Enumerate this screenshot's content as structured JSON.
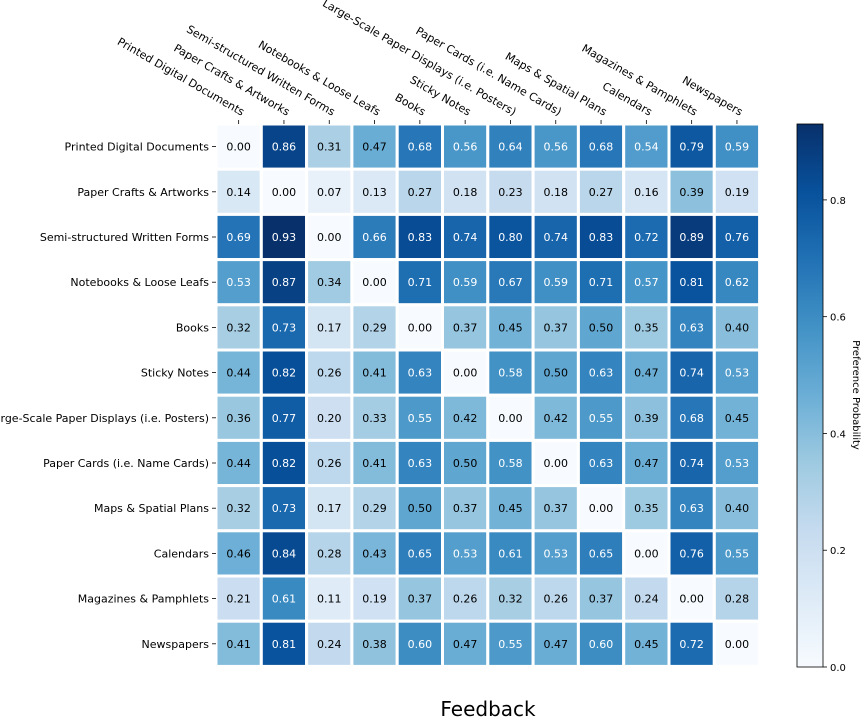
{
  "chart_data": {
    "type": "heatmap",
    "title": "",
    "xlabel": "Feedback",
    "ylabel": "",
    "x_categories": [
      "Printed Digital Documents",
      "Paper Crafts & Artworks",
      "Semi-structured Written Forms",
      "Notebooks & Loose Leafs",
      "Books",
      "Sticky Notes",
      "Large-Scale Paper Displays (i.e. Posters)",
      "Paper Cards (i.e. Name Cards)",
      "Maps & Spatial Plans",
      "Calendars",
      "Magazines & Pamphlets",
      "Newspapers"
    ],
    "y_categories": [
      "Printed Digital Documents",
      "Paper Crafts & Artworks",
      "Semi-structured Written Forms",
      "Notebooks & Loose Leafs",
      "Books",
      "Sticky Notes",
      "Large-Scale Paper Displays (i.e. Posters)",
      "Paper Cards (i.e. Name Cards)",
      "Maps & Spatial Plans",
      "Calendars",
      "Magazines & Pamphlets",
      "Newspapers"
    ],
    "values": [
      [
        0.0,
        0.86,
        0.31,
        0.47,
        0.68,
        0.56,
        0.64,
        0.56,
        0.68,
        0.54,
        0.79,
        0.59
      ],
      [
        0.14,
        0.0,
        0.07,
        0.13,
        0.27,
        0.18,
        0.23,
        0.18,
        0.27,
        0.16,
        0.39,
        0.19
      ],
      [
        0.69,
        0.93,
        0.0,
        0.66,
        0.83,
        0.74,
        0.8,
        0.74,
        0.83,
        0.72,
        0.89,
        0.76
      ],
      [
        0.53,
        0.87,
        0.34,
        0.0,
        0.71,
        0.59,
        0.67,
        0.59,
        0.71,
        0.57,
        0.81,
        0.62
      ],
      [
        0.32,
        0.73,
        0.17,
        0.29,
        0.0,
        0.37,
        0.45,
        0.37,
        0.5,
        0.35,
        0.63,
        0.4
      ],
      [
        0.44,
        0.82,
        0.26,
        0.41,
        0.63,
        0.0,
        0.58,
        0.5,
        0.63,
        0.47,
        0.74,
        0.53
      ],
      [
        0.36,
        0.77,
        0.2,
        0.33,
        0.55,
        0.42,
        0.0,
        0.42,
        0.55,
        0.39,
        0.68,
        0.45
      ],
      [
        0.44,
        0.82,
        0.26,
        0.41,
        0.63,
        0.5,
        0.58,
        0.0,
        0.63,
        0.47,
        0.74,
        0.53
      ],
      [
        0.32,
        0.73,
        0.17,
        0.29,
        0.5,
        0.37,
        0.45,
        0.37,
        0.0,
        0.35,
        0.63,
        0.4
      ],
      [
        0.46,
        0.84,
        0.28,
        0.43,
        0.65,
        0.53,
        0.61,
        0.53,
        0.65,
        0.0,
        0.76,
        0.55
      ],
      [
        0.21,
        0.61,
        0.11,
        0.19,
        0.37,
        0.26,
        0.32,
        0.26,
        0.37,
        0.24,
        0.0,
        0.28
      ],
      [
        0.41,
        0.81,
        0.24,
        0.38,
        0.6,
        0.47,
        0.55,
        0.47,
        0.6,
        0.45,
        0.72,
        0.0
      ]
    ],
    "colormap": "Blues",
    "color_range": [
      0,
      0.93
    ],
    "colorbar": {
      "label": "Preference Probability",
      "ticks": [
        0.0,
        0.2,
        0.4,
        0.6,
        0.8
      ],
      "tick_labels": [
        "0.0",
        "0.2",
        "0.4",
        "0.6",
        "0.8"
      ]
    },
    "cell_border_color": "#ffffff",
    "x_tick_position": "top"
  }
}
